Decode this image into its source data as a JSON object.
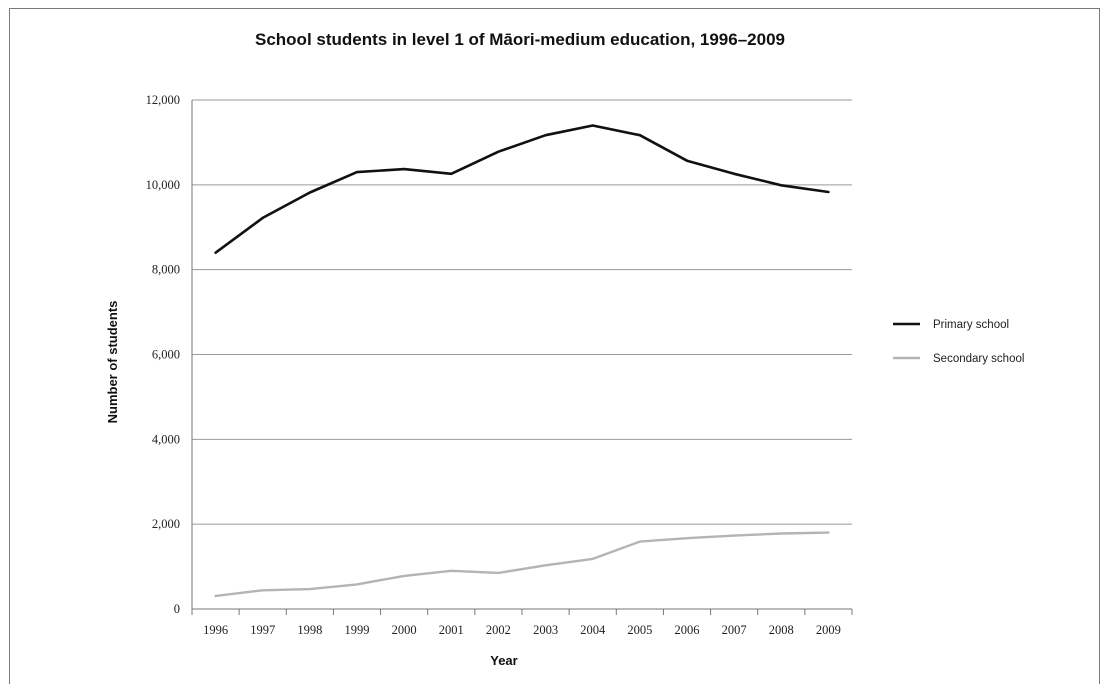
{
  "chart_data": {
    "type": "line",
    "title": "School students in level 1 of Māori-medium education, 1996–2009",
    "xlabel": "Year",
    "ylabel": "Number of students",
    "ylim": [
      0,
      12000
    ],
    "yticks": [
      0,
      2000,
      4000,
      6000,
      8000,
      10000,
      12000
    ],
    "ytick_labels": [
      "0",
      "2,000",
      "4,000",
      "6,000",
      "8,000",
      "10,000",
      "12,000"
    ],
    "x": [
      "1996",
      "1997",
      "1998",
      "1999",
      "2000",
      "2001",
      "2002",
      "2003",
      "2004",
      "2005",
      "2006",
      "2007",
      "2008",
      "2009"
    ],
    "grid": true,
    "legend_position": "right",
    "series": [
      {
        "name": "Primary school",
        "color": "#111111",
        "values": [
          8400,
          9220,
          9820,
          10300,
          10370,
          10260,
          10780,
          11170,
          11400,
          11170,
          10570,
          10260,
          9990,
          9830
        ]
      },
      {
        "name": "Secondary school",
        "color": "#b4b4b4",
        "values": [
          310,
          440,
          470,
          580,
          780,
          900,
          850,
          1030,
          1180,
          1590,
          1670,
          1730,
          1780,
          1800
        ]
      }
    ]
  }
}
